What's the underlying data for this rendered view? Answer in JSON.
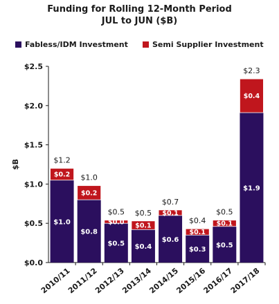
{
  "chart_data": {
    "type": "bar",
    "stacked": true,
    "title": "Funding for Rolling 12-Month Period",
    "subtitle": "JUL to JUN ($B)",
    "xlabel": "",
    "ylabel": "$B",
    "ylim": [
      0,
      2.5
    ],
    "yticks": [
      "$0.0",
      "$0.5",
      "$1.0",
      "$1.5",
      "$2.0",
      "$2.5"
    ],
    "yticks_values": [
      0,
      0.5,
      1.0,
      1.5,
      2.0,
      2.5
    ],
    "grid": false,
    "legend_position": "top",
    "categories": [
      "2010/11",
      "2011/12",
      "2012/13",
      "2013/14",
      "2014/15",
      "2015/16",
      "2016/17",
      "2017/18"
    ],
    "series": [
      {
        "name": "Fabless/IDM Investment",
        "color": "#2b0f5e",
        "values": [
          1.05,
          0.8,
          0.5,
          0.42,
          0.6,
          0.35,
          0.46,
          1.91
        ],
        "labels": [
          "$1.0",
          "$0.8",
          "$0.5",
          "$0.4",
          "$0.6",
          "$0.3",
          "$0.5",
          "$1.9"
        ]
      },
      {
        "name": "Semi Supplier Investment",
        "color": "#c0161d",
        "values": [
          0.15,
          0.18,
          0.04,
          0.11,
          0.07,
          0.08,
          0.08,
          0.43
        ],
        "labels": [
          "$0.2",
          "$0.2",
          "$0.0",
          "$0.1",
          "$0.1",
          "$0.1",
          "$0.1",
          "$0.4"
        ]
      }
    ],
    "totals": [
      "$1.2",
      "$1.0",
      "$0.5",
      "$0.5",
      "$0.7",
      "$0.4",
      "$0.5",
      "$2.3"
    ]
  }
}
